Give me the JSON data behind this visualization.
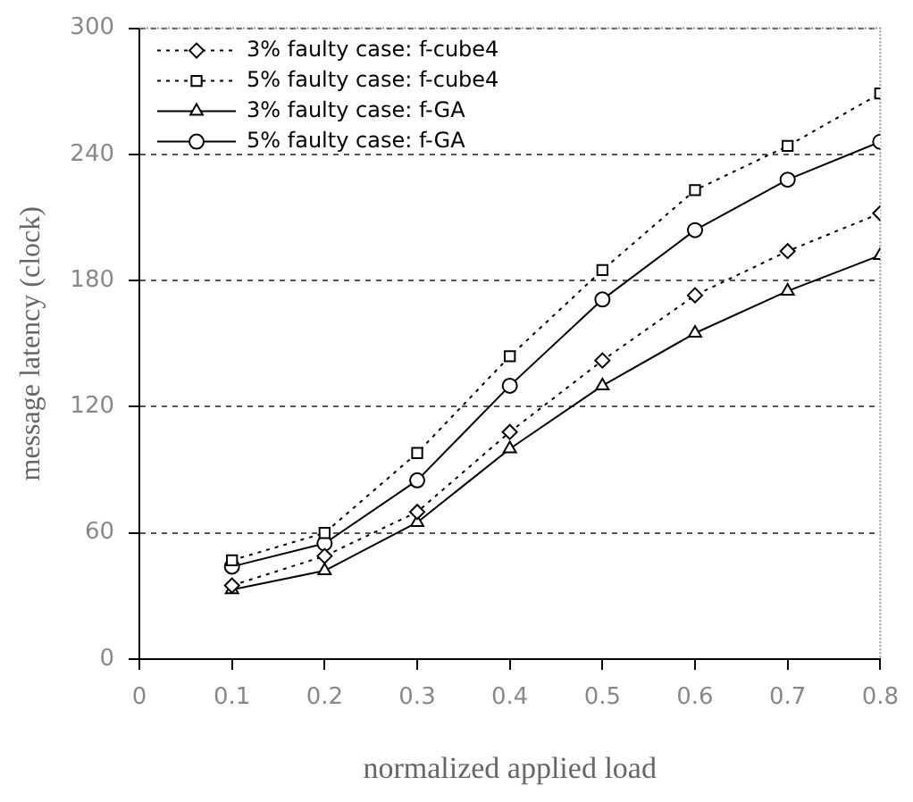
{
  "chart_data": {
    "type": "line",
    "xlabel": "normalized applied load",
    "ylabel": "message latency (clock)",
    "x": [
      0.1,
      0.2,
      0.3,
      0.4,
      0.5,
      0.6,
      0.7,
      0.8
    ],
    "xlim": [
      0,
      0.8
    ],
    "xticks": [
      0,
      0.1,
      0.2,
      0.3,
      0.4,
      0.5,
      0.6,
      0.7,
      0.8
    ],
    "ylim": [
      0,
      300
    ],
    "yticks": [
      0,
      60,
      120,
      180,
      240,
      300
    ],
    "grid": "y",
    "legend": "top left",
    "series": [
      {
        "name": "3% faulty case: f-cube4",
        "color": "#000000",
        "marker": "diamond",
        "line_style": "dotted",
        "values": [
          35,
          49,
          70,
          108,
          142,
          173,
          194,
          212
        ]
      },
      {
        "name": "5% faulty case: f-cube4",
        "color": "#000000",
        "marker": "square",
        "line_style": "dotted",
        "values": [
          47,
          60,
          98,
          144,
          185,
          223,
          244,
          269
        ]
      },
      {
        "name": "3% faulty case: f-GA",
        "color": "#000000",
        "marker": "triangle",
        "line_style": "solid",
        "values": [
          33,
          42,
          65,
          100,
          130,
          155,
          175,
          192
        ]
      },
      {
        "name": "5% faulty case: f-GA",
        "color": "#000000",
        "marker": "circle",
        "line_style": "solid",
        "values": [
          44,
          55,
          85,
          130,
          171,
          204,
          228,
          246
        ]
      }
    ]
  }
}
